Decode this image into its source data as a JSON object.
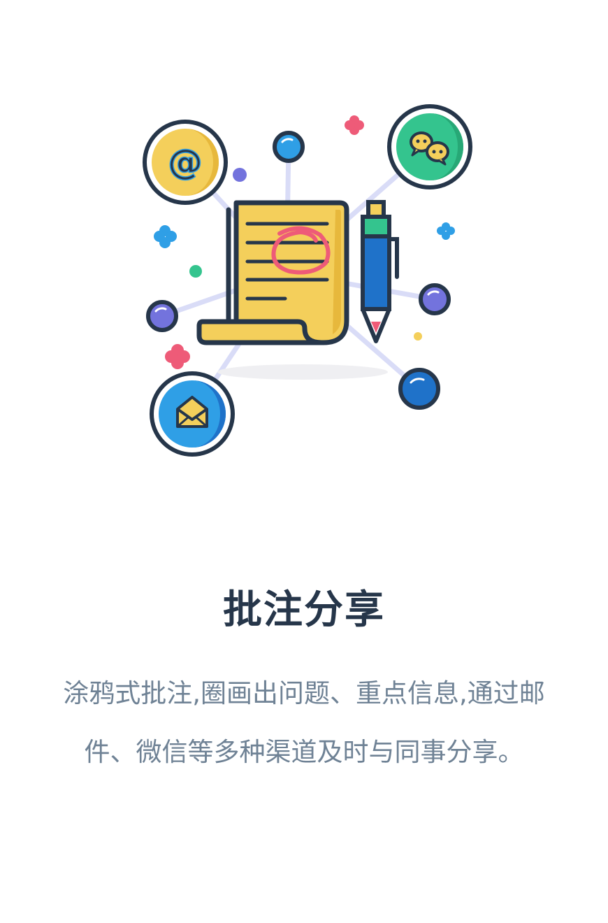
{
  "feature": {
    "title": "批注分享",
    "description_lines": [
      "涂鸦式批注,圈画出问题、重点信息,通过邮",
      "件、微信等多种渠道及时与同事分享。"
    ]
  },
  "illustration": {
    "icons": {
      "email_at": "at-sign-icon",
      "wechat": "wechat-chat-bubbles-icon",
      "mail": "envelope-icon",
      "document": "annotated-scroll-document-icon",
      "pen": "pen-icon"
    },
    "glyphs": {
      "at_symbol": "@"
    },
    "colors": {
      "outline": "#26364a",
      "yellow": "#f4cf5b",
      "green": "#34c48e",
      "blue": "#2f9fe6",
      "dark_blue": "#1f72c9",
      "purple": "#7373dd",
      "pink": "#ee5b78",
      "connector": "#d9dcf7"
    }
  }
}
